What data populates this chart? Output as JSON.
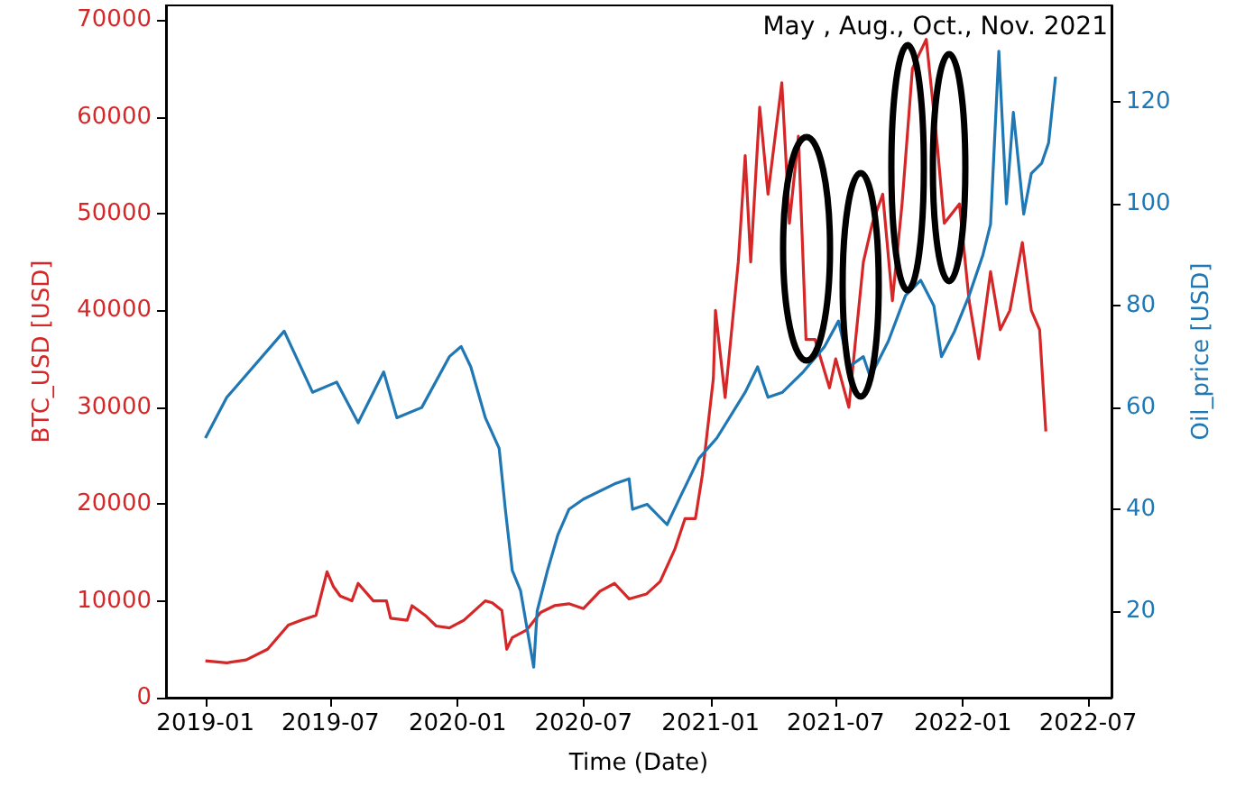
{
  "chart_data": {
    "type": "line",
    "xlabel": "Time (Date)",
    "ylabel": "BTC_USD [USD]",
    "y2label": "Oil_price [USD]",
    "annotations": [
      "May , Aug., Oct., Nov. 2021"
    ],
    "xlim": [
      "2018-11-05",
      "2022-08-04"
    ],
    "xticks": [
      "2019-01",
      "2019-07",
      "2020-01",
      "2020-07",
      "2021-01",
      "2021-07",
      "2022-01",
      "2022-07"
    ],
    "ylim": [
      0,
      71500
    ],
    "yticks": [
      0,
      10000,
      20000,
      30000,
      40000,
      50000,
      60000,
      70000
    ],
    "y2lim": [
      3,
      139
    ],
    "y2ticks": [
      20,
      40,
      60,
      80,
      100,
      120
    ],
    "grid": false,
    "marker": "none",
    "line_style": "solid",
    "series": [
      {
        "color": "#d62728",
        "axis": "y",
        "x": [
          "2019-01-01",
          "2019-02-01",
          "2019-03-01",
          "2019-04-01",
          "2019-05-01",
          "2019-05-20",
          "2019-06-10",
          "2019-06-26",
          "2019-07-05",
          "2019-07-15",
          "2019-08-01",
          "2019-08-10",
          "2019-09-01",
          "2019-09-20",
          "2019-09-26",
          "2019-10-20",
          "2019-10-27",
          "2019-11-15",
          "2019-12-01",
          "2019-12-20",
          "2020-01-10",
          "2020-02-10",
          "2020-02-20",
          "2020-03-05",
          "2020-03-12",
          "2020-03-20",
          "2020-04-10",
          "2020-04-30",
          "2020-05-20",
          "2020-06-10",
          "2020-07-01",
          "2020-07-25",
          "2020-08-15",
          "2020-09-05",
          "2020-09-30",
          "2020-10-20",
          "2020-11-10",
          "2020-11-25",
          "2020-12-10",
          "2020-12-20",
          "2021-01-05",
          "2021-01-08",
          "2021-01-22",
          "2021-02-10",
          "2021-02-20",
          "2021-02-28",
          "2021-03-13",
          "2021-03-25",
          "2021-04-14",
          "2021-04-25",
          "2021-05-08",
          "2021-05-19",
          "2021-06-01",
          "2021-06-22",
          "2021-07-01",
          "2021-07-20",
          "2021-08-10",
          "2021-08-23",
          "2021-09-07",
          "2021-09-21",
          "2021-10-05",
          "2021-10-20",
          "2021-11-09",
          "2021-11-25",
          "2021-12-05",
          "2021-12-27",
          "2022-01-10",
          "2022-01-24",
          "2022-02-10",
          "2022-02-24",
          "2022-03-10",
          "2022-03-28",
          "2022-04-10",
          "2022-04-22",
          "2022-05-01"
        ],
        "values": [
          3800,
          3600,
          3900,
          5000,
          7500,
          8000,
          8500,
          13000,
          11500,
          10500,
          10000,
          11800,
          10000,
          10000,
          8200,
          8000,
          9500,
          8500,
          7400,
          7200,
          8000,
          10000,
          9800,
          9000,
          5000,
          6200,
          7000,
          8800,
          9500,
          9700,
          9200,
          11000,
          11800,
          10200,
          10700,
          12000,
          15300,
          18500,
          18500,
          23000,
          33000,
          40000,
          31000,
          45000,
          56000,
          45000,
          61000,
          52000,
          63500,
          49000,
          58000,
          37000,
          37000,
          32000,
          35000,
          30000,
          45000,
          49000,
          52000,
          41000,
          51000,
          65000,
          68000,
          57000,
          49000,
          51000,
          41000,
          35000,
          44000,
          38000,
          40000,
          47000,
          40000,
          38000,
          27500
        ]
      },
      {
        "color": "#1f77b4",
        "axis": "y2",
        "x": [
          "2019-01-01",
          "2019-02-01",
          "2019-04-25",
          "2019-06-05",
          "2019-07-10",
          "2019-08-10",
          "2019-09-16",
          "2019-10-05",
          "2019-11-10",
          "2019-12-20",
          "2020-01-06",
          "2020-01-20",
          "2020-02-10",
          "2020-03-01",
          "2020-03-10",
          "2020-03-20",
          "2020-04-01",
          "2020-04-20",
          "2020-04-25",
          "2020-05-10",
          "2020-05-25",
          "2020-06-10",
          "2020-07-01",
          "2020-08-15",
          "2020-09-05",
          "2020-09-10",
          "2020-10-01",
          "2020-10-30",
          "2020-11-20",
          "2020-12-15",
          "2021-01-10",
          "2021-02-20",
          "2021-03-10",
          "2021-03-25",
          "2021-04-15",
          "2021-05-15",
          "2021-06-15",
          "2021-07-05",
          "2021-07-20",
          "2021-08-10",
          "2021-08-20",
          "2021-09-15",
          "2021-10-10",
          "2021-11-01",
          "2021-11-20",
          "2021-12-01",
          "2021-12-20",
          "2022-01-10",
          "2022-01-30",
          "2022-02-10",
          "2022-02-22",
          "2022-03-05",
          "2022-03-15",
          "2022-03-30",
          "2022-04-10",
          "2022-04-25",
          "2022-05-05",
          "2022-05-15"
        ],
        "values": [
          54,
          62,
          75,
          63,
          65,
          57,
          67,
          58,
          60,
          70,
          72,
          68,
          58,
          52,
          40,
          28,
          24,
          9,
          20,
          28,
          35,
          40,
          42,
          45,
          46,
          40,
          41,
          37,
          43,
          50,
          54,
          63,
          68,
          62,
          63,
          67,
          72,
          77,
          68,
          70,
          66,
          73,
          82,
          85,
          80,
          70,
          75,
          82,
          90,
          96,
          130,
          100,
          118,
          98,
          106,
          108,
          112,
          125
        ]
      }
    ]
  }
}
